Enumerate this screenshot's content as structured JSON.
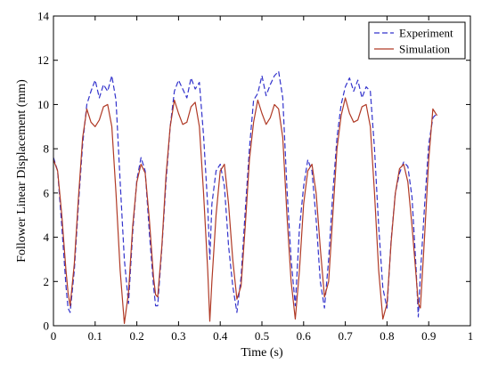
{
  "chart_data": {
    "type": "line",
    "title": "",
    "xlabel": "Time (s)",
    "ylabel": "Follower Linear Displacement (mm)",
    "xlim": [
      0,
      1
    ],
    "ylim": [
      0,
      14
    ],
    "xticks": [
      "0",
      "0.1",
      "0.2",
      "0.3",
      "0.4",
      "0.5",
      "0.6",
      "0.7",
      "0.8",
      "0.9",
      "1"
    ],
    "yticks": [
      "0",
      "2",
      "4",
      "6",
      "8",
      "10",
      "12",
      "14"
    ],
    "grid": false,
    "legend_position": "top-right",
    "series": [
      {
        "name": "Experiment",
        "color": "#3333cc",
        "style": "dashed",
        "x": [
          0.0,
          0.01,
          0.02,
          0.03,
          0.035,
          0.04,
          0.05,
          0.06,
          0.07,
          0.08,
          0.09,
          0.1,
          0.11,
          0.12,
          0.13,
          0.14,
          0.15,
          0.16,
          0.17,
          0.18,
          0.19,
          0.2,
          0.21,
          0.22,
          0.23,
          0.24,
          0.245,
          0.25,
          0.26,
          0.27,
          0.28,
          0.29,
          0.3,
          0.31,
          0.32,
          0.33,
          0.34,
          0.35,
          0.36,
          0.37,
          0.375,
          0.38,
          0.39,
          0.4,
          0.41,
          0.42,
          0.43,
          0.44,
          0.45,
          0.46,
          0.47,
          0.48,
          0.49,
          0.5,
          0.51,
          0.52,
          0.53,
          0.54,
          0.55,
          0.56,
          0.57,
          0.58,
          0.59,
          0.6,
          0.61,
          0.62,
          0.63,
          0.64,
          0.65,
          0.66,
          0.67,
          0.68,
          0.69,
          0.7,
          0.71,
          0.72,
          0.73,
          0.74,
          0.75,
          0.76,
          0.77,
          0.78,
          0.79,
          0.8,
          0.81,
          0.82,
          0.83,
          0.84,
          0.85,
          0.86,
          0.87,
          0.875,
          0.88,
          0.89,
          0.9,
          0.91,
          0.92
        ],
        "values": [
          7.6,
          7.0,
          4.5,
          1.8,
          0.8,
          0.6,
          2.5,
          5.5,
          8.2,
          10.0,
          10.6,
          11.1,
          10.3,
          10.9,
          10.6,
          11.3,
          10.2,
          6.5,
          3.0,
          1.0,
          4.2,
          6.6,
          7.6,
          7.0,
          4.2,
          1.8,
          0.9,
          0.9,
          3.5,
          6.5,
          9.0,
          10.6,
          11.1,
          10.7,
          10.3,
          11.2,
          10.7,
          11.0,
          8.6,
          5.4,
          3.0,
          5.5,
          7.0,
          7.3,
          6.3,
          3.6,
          1.8,
          0.6,
          2.2,
          5.2,
          8.0,
          10.2,
          10.5,
          11.3,
          10.4,
          10.9,
          11.3,
          11.5,
          10.3,
          6.2,
          3.0,
          0.9,
          4.4,
          6.3,
          7.5,
          7.0,
          4.8,
          2.0,
          0.8,
          3.0,
          6.0,
          8.5,
          10.0,
          10.8,
          11.2,
          10.6,
          11.1,
          10.3,
          10.8,
          10.6,
          8.0,
          4.5,
          1.7,
          0.8,
          3.9,
          6.0,
          6.9,
          7.4,
          7.2,
          5.8,
          2.5,
          0.4,
          2.3,
          5.4,
          8.2,
          9.4,
          9.6
        ]
      },
      {
        "name": "Simulation",
        "color": "#b03a26",
        "style": "solid",
        "x": [
          0.0,
          0.01,
          0.02,
          0.03,
          0.035,
          0.04,
          0.05,
          0.06,
          0.07,
          0.08,
          0.09,
          0.1,
          0.11,
          0.12,
          0.13,
          0.14,
          0.15,
          0.16,
          0.17,
          0.18,
          0.19,
          0.2,
          0.21,
          0.22,
          0.23,
          0.24,
          0.245,
          0.25,
          0.26,
          0.27,
          0.28,
          0.29,
          0.3,
          0.31,
          0.32,
          0.33,
          0.34,
          0.35,
          0.36,
          0.37,
          0.375,
          0.38,
          0.39,
          0.4,
          0.41,
          0.42,
          0.43,
          0.44,
          0.45,
          0.46,
          0.47,
          0.48,
          0.49,
          0.5,
          0.51,
          0.52,
          0.53,
          0.54,
          0.55,
          0.56,
          0.57,
          0.58,
          0.59,
          0.6,
          0.61,
          0.62,
          0.63,
          0.64,
          0.65,
          0.66,
          0.67,
          0.68,
          0.69,
          0.7,
          0.71,
          0.72,
          0.73,
          0.74,
          0.75,
          0.76,
          0.77,
          0.78,
          0.79,
          0.8,
          0.81,
          0.82,
          0.83,
          0.84,
          0.85,
          0.86,
          0.87,
          0.875,
          0.88,
          0.89,
          0.9,
          0.91,
          0.92
        ],
        "values": [
          7.5,
          7.0,
          5.0,
          2.5,
          1.5,
          0.9,
          2.8,
          5.8,
          8.5,
          9.8,
          9.2,
          9.0,
          9.3,
          9.9,
          10.0,
          9.0,
          6.0,
          2.5,
          0.1,
          1.5,
          4.5,
          6.5,
          7.3,
          6.9,
          4.8,
          2.2,
          1.4,
          1.3,
          3.6,
          6.8,
          9.0,
          10.2,
          9.6,
          9.1,
          9.2,
          9.9,
          10.1,
          9.0,
          6.0,
          2.5,
          0.2,
          2.0,
          5.0,
          7.0,
          7.3,
          5.5,
          3.0,
          1.2,
          1.8,
          4.5,
          7.5,
          9.2,
          10.2,
          9.6,
          9.1,
          9.4,
          10.0,
          9.8,
          8.5,
          5.0,
          2.0,
          0.3,
          2.5,
          5.5,
          7.0,
          7.3,
          6.0,
          3.5,
          1.3,
          2.0,
          5.0,
          8.0,
          9.5,
          10.3,
          9.6,
          9.2,
          9.3,
          9.9,
          10.0,
          9.0,
          6.0,
          2.5,
          0.3,
          1.0,
          3.8,
          6.0,
          7.1,
          7.3,
          6.5,
          4.5,
          2.2,
          1.0,
          0.8,
          4.0,
          7.5,
          9.8,
          9.5
        ]
      }
    ]
  }
}
